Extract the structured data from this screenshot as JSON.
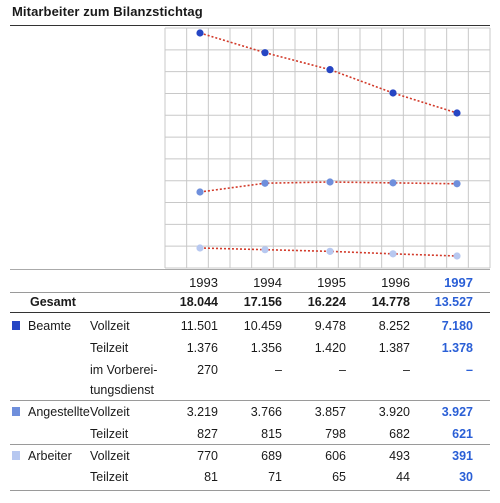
{
  "title": "Mitarbeiter zum Bilanzstichtag",
  "colors": {
    "beamte": "#2646c4",
    "angestellte": "#6f8fdc",
    "arbeiter": "#b7c8f0",
    "trend": "#d23a2a",
    "grid": "#c8c8c8",
    "highlight": "#2a5fd6"
  },
  "chart_data": {
    "type": "line",
    "x": [
      1993,
      1994,
      1995,
      1996,
      1997
    ],
    "series": [
      {
        "name": "Beamte",
        "values": [
          12877,
          11815,
          10898,
          9639,
          8558
        ]
      },
      {
        "name": "Angestellte",
        "values": [
          4046,
          4581,
          4655,
          4602,
          4548
        ]
      },
      {
        "name": "Arbeiter",
        "values": [
          851,
          760,
          671,
          537,
          421
        ]
      }
    ],
    "title": "Mitarbeiter zum Bilanzstichtag",
    "xlabel": "",
    "ylabel": "",
    "ylim": [
      0,
      13200
    ],
    "grid": true
  },
  "table": {
    "years": [
      "1993",
      "1994",
      "1995",
      "1996",
      "1997"
    ],
    "gesamt_label": "Gesamt",
    "gesamt": [
      "18.044",
      "17.156",
      "16.224",
      "14.778",
      "13.527"
    ],
    "rows": [
      {
        "group": "Beamte",
        "type": "Vollzeit",
        "values": [
          "11.501",
          "10.459",
          "9.478",
          "8.252",
          "7.180"
        ]
      },
      {
        "group": "",
        "type": "Teilzeit",
        "values": [
          "1.376",
          "1.356",
          "1.420",
          "1.387",
          "1.378"
        ]
      },
      {
        "group": "",
        "type": "im Vorberei-",
        "values": [
          "270",
          "–",
          "–",
          "–",
          "–"
        ]
      },
      {
        "group": "",
        "type": "tungsdienst",
        "values": [
          "",
          "",
          "",
          "",
          ""
        ]
      },
      {
        "group": "Angestellte",
        "type": "Vollzeit",
        "values": [
          "3.219",
          "3.766",
          "3.857",
          "3.920",
          "3.927"
        ]
      },
      {
        "group": "",
        "type": "Teilzeit",
        "values": [
          "827",
          "815",
          "798",
          "682",
          "621"
        ]
      },
      {
        "group": "Arbeiter",
        "type": "Vollzeit",
        "values": [
          "770",
          "689",
          "606",
          "493",
          "391"
        ]
      },
      {
        "group": "",
        "type": "Teilzeit",
        "values": [
          "81",
          "71",
          "65",
          "44",
          "30"
        ]
      }
    ]
  }
}
